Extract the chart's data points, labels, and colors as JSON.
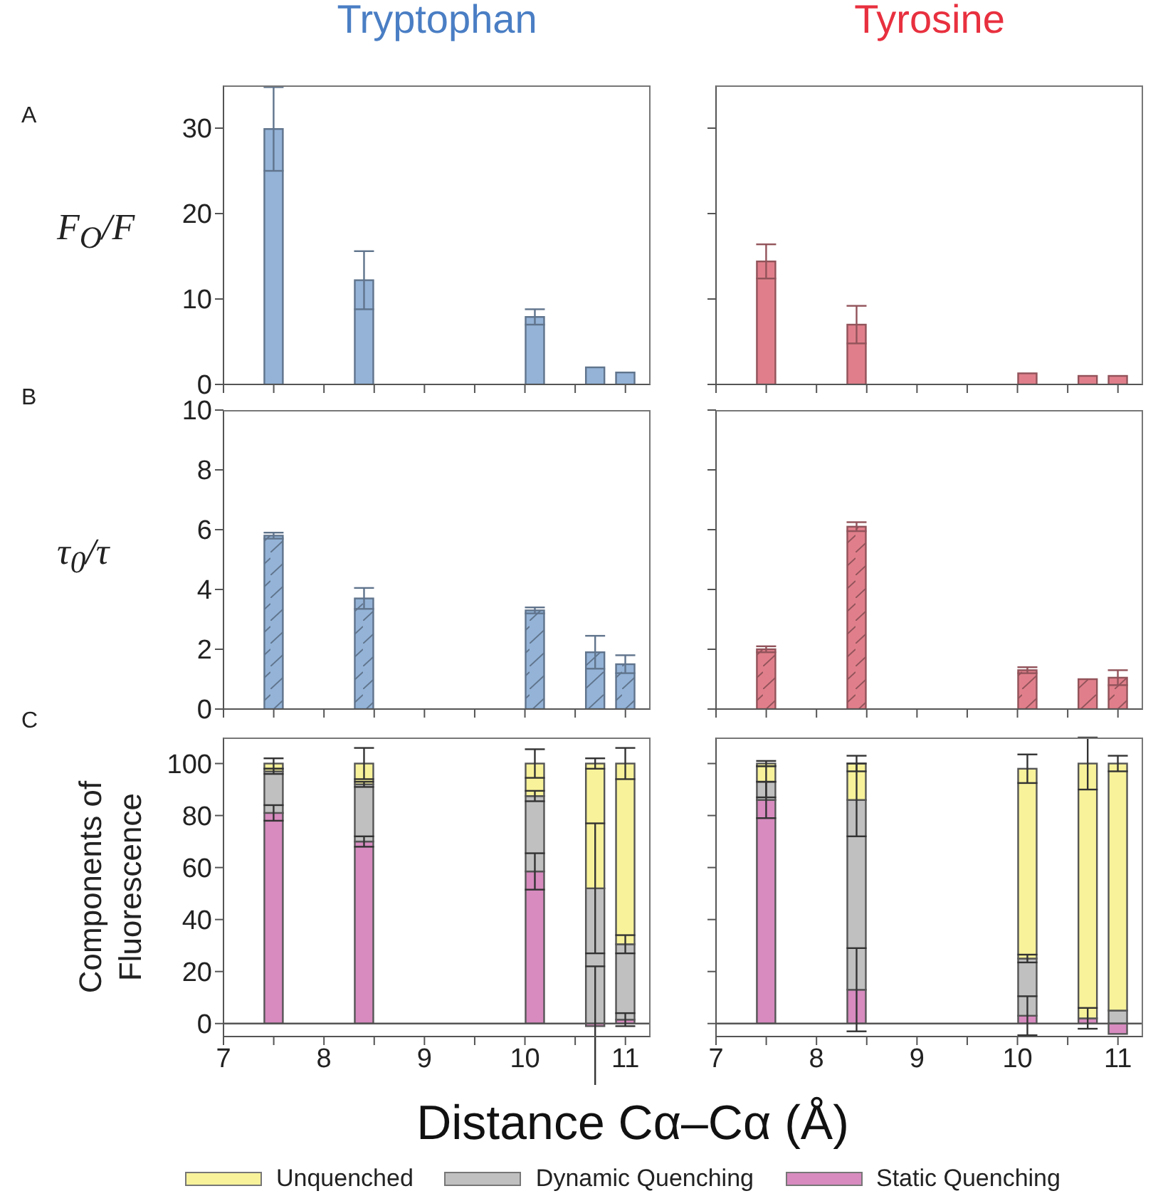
{
  "chart_data": [
    {
      "type": "bar",
      "title": "Tryptophan",
      "ylabel": "F$_{O}$/F",
      "annotations": [
        "A"
      ],
      "x": [
        7.5,
        8.4,
        10.1,
        10.7,
        11.0
      ],
      "xlim": [
        7,
        11.25
      ],
      "xticks": [
        7,
        {
          "value": 7.5,
          "label": null
        },
        8,
        {
          "value": 8.5,
          "label": null
        },
        9,
        {
          "value": 9.5,
          "label": null
        },
        10,
        {
          "value": 10.5,
          "label": null
        },
        11
      ],
      "ylim": [
        0,
        35
      ],
      "yticks": [
        0,
        10,
        20,
        30
      ],
      "tick_labels": "y",
      "series": [
        {
          "color": "#94b3d7",
          "values": [
            29.9,
            12.2,
            7.9,
            2.0,
            1.4
          ],
          "errors": [
            4.9,
            3.4,
            0.9,
            null,
            null
          ]
        }
      ]
    },
    {
      "type": "bar",
      "title": "Tyrosine",
      "x": [
        7.5,
        8.4,
        10.1,
        10.7,
        11.0
      ],
      "xlim": [
        7,
        11.25
      ],
      "xticks": [
        7,
        {
          "value": 7.5,
          "label": null
        },
        8,
        {
          "value": 8.5,
          "label": null
        },
        9,
        {
          "value": 9.5,
          "label": null
        },
        10,
        {
          "value": 10.5,
          "label": null
        },
        11
      ],
      "ylim": [
        0,
        35
      ],
      "yticks": [
        0,
        10,
        20,
        30
      ],
      "tick_labels": false,
      "series": [
        {
          "color": "#e07f8b",
          "values": [
            14.4,
            7.0,
            1.3,
            1.0,
            1.0
          ],
          "errors": [
            2.0,
            2.2,
            null,
            null,
            null
          ]
        }
      ]
    },
    {
      "type": "bar",
      "ylabel": "τ$_{0}$/τ",
      "annotations": [
        "B"
      ],
      "x": [
        7.5,
        8.4,
        10.1,
        10.7,
        11.0
      ],
      "xlim": [
        7,
        11.25
      ],
      "xticks": [
        7,
        {
          "value": 7.5,
          "label": null
        },
        8,
        {
          "value": 8.5,
          "label": null
        },
        9,
        {
          "value": 9.5,
          "label": null
        },
        10,
        {
          "value": 10.5,
          "label": null
        },
        11
      ],
      "ylim": [
        0,
        10
      ],
      "yticks": [
        0,
        2,
        4,
        6,
        8,
        10
      ],
      "tick_labels": "y",
      "series": [
        {
          "color": "#94b3d7",
          "values": [
            5.8,
            3.7,
            3.3,
            1.9,
            1.5
          ],
          "errors": [
            0.1,
            0.35,
            0.1,
            0.55,
            0.3
          ]
        }
      ]
    },
    {
      "type": "bar",
      "x": [
        7.5,
        8.4,
        10.1,
        10.7,
        11.0
      ],
      "xlim": [
        7,
        11.25
      ],
      "xticks": [
        7,
        {
          "value": 7.5,
          "label": null
        },
        8,
        {
          "value": 8.5,
          "label": null
        },
        9,
        {
          "value": 9.5,
          "label": null
        },
        10,
        {
          "value": 10.5,
          "label": null
        },
        11
      ],
      "ylim": [
        0,
        10
      ],
      "yticks": [
        0,
        2,
        4,
        6,
        8,
        10
      ],
      "tick_labels": false,
      "series": [
        {
          "color": "#e07f8b",
          "values": [
            2.0,
            6.1,
            1.3,
            1.0,
            1.05
          ],
          "errors": [
            0.1,
            0.15,
            0.1,
            null,
            0.25
          ]
        }
      ]
    },
    {
      "type": "bar",
      "stacked": true,
      "ylabel": "Components of Fluorescence",
      "xlabel": "Distance Cα–Cα (Å)",
      "annotations": [
        "C"
      ],
      "legend": "bottom",
      "x": [
        7.5,
        8.4,
        10.1,
        10.7,
        11.0
      ],
      "xlim": [
        7,
        11.25
      ],
      "xticks": [
        7,
        {
          "value": 7.5,
          "label": null
        },
        8,
        {
          "value": 8.5,
          "label": null
        },
        9,
        {
          "value": 9.5,
          "label": null
        },
        10,
        {
          "value": 10.5,
          "label": null
        },
        11
      ],
      "ylim": [
        -5,
        110
      ],
      "yticks": [
        0,
        20,
        40,
        60,
        80,
        100
      ],
      "ref_lines": [
        {
          "axis": "y",
          "value": 0
        }
      ],
      "series": [
        {
          "name": "Static Quenching",
          "color": "#d78bbf",
          "values": [
            81,
            70,
            58.5,
            -1,
            1.5
          ],
          "errors": [
            3,
            2,
            7,
            23,
            2.5
          ]
        },
        {
          "name": "Dynamic Quenching",
          "color": "#c0c0c0",
          "values": [
            16,
            22,
            29,
            52,
            29
          ],
          "errors": [
            1,
            1,
            2,
            25,
            3.5
          ]
        },
        {
          "name": "Unquenched",
          "color": "#f8f29a",
          "values": [
            3,
            8,
            12.5,
            48,
            69.5
          ],
          "errors": [
            2,
            6,
            5.5,
            2,
            6
          ]
        }
      ]
    },
    {
      "type": "bar",
      "stacked": true,
      "x": [
        7.5,
        8.4,
        10.1,
        10.7,
        11.0
      ],
      "xlim": [
        7,
        11.25
      ],
      "xticks": [
        7,
        {
          "value": 7.5,
          "label": null
        },
        8,
        {
          "value": 8.5,
          "label": null
        },
        9,
        {
          "value": 9.5,
          "label": null
        },
        10,
        {
          "value": 10.5,
          "label": null
        },
        11
      ],
      "ylim": [
        -5,
        110
      ],
      "yticks": [
        0,
        20,
        40,
        60,
        80,
        100
      ],
      "tick_labels": "x",
      "ref_lines": [
        {
          "axis": "y",
          "value": 0
        }
      ],
      "series": [
        {
          "color": "#d78bbf",
          "values": [
            86,
            13,
            3,
            2,
            -4
          ],
          "errors": [
            7,
            16,
            7.5,
            4,
            null
          ]
        },
        {
          "color": "#c0c0c0",
          "values": [
            7,
            73,
            22,
            0,
            5
          ],
          "errors": [
            6,
            14,
            1.5,
            null,
            null
          ]
        },
        {
          "color": "#f8f29a",
          "values": [
            7,
            14,
            73,
            98,
            95
          ],
          "errors": [
            1,
            3,
            5.5,
            10,
            3
          ]
        }
      ]
    }
  ]
}
